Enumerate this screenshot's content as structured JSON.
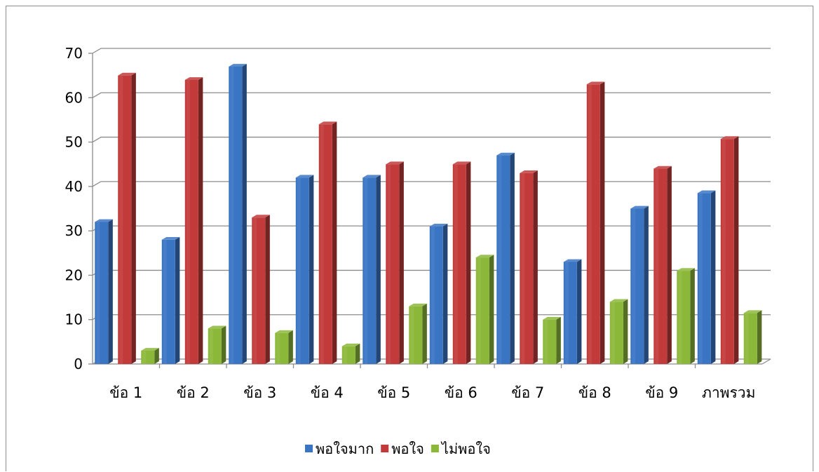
{
  "chart_data": {
    "type": "bar",
    "categories": [
      "ข้อ 1",
      "ข้อ 2",
      "ข้อ 3",
      "ข้อ 4",
      "ข้อ 5",
      "ข้อ 6",
      "ข้อ 7",
      "ข้อ 8",
      "ข้อ 9",
      "ภาพรวม"
    ],
    "series": [
      {
        "name": "พอใจมาก",
        "values": [
          32,
          28,
          67,
          42,
          42,
          31,
          47,
          23,
          35,
          38.5
        ],
        "color": "#3a75c4"
      },
      {
        "name": "พอใจ",
        "values": [
          65,
          64,
          33,
          54,
          45,
          45,
          43,
          63,
          44,
          50.7
        ],
        "color": "#c23b3a"
      },
      {
        "name": "ไม่พอใจ",
        "values": [
          3,
          8,
          7,
          4,
          13,
          24,
          10,
          14,
          21,
          11.5
        ],
        "color": "#8cb83a"
      }
    ],
    "yticks": [
      0,
      10,
      20,
      30,
      40,
      50,
      60,
      70
    ],
    "ylim": [
      0,
      70
    ],
    "grid": true,
    "legend": "bottom",
    "style": "3d-clustered-column"
  }
}
